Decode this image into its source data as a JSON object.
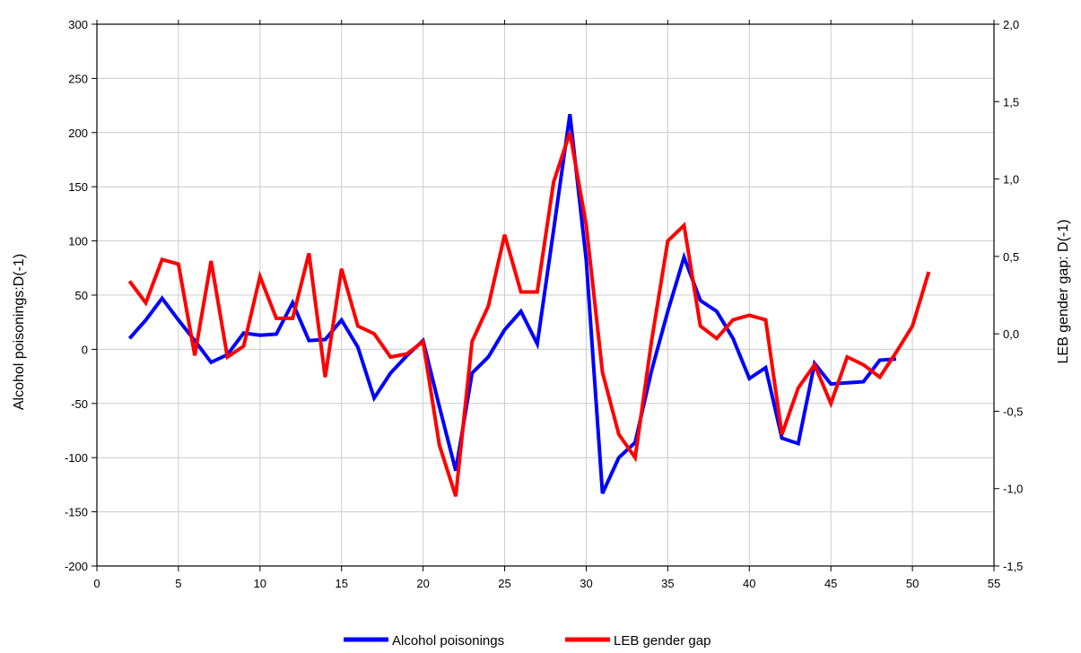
{
  "chart_data": {
    "type": "line",
    "xlim": [
      0,
      55
    ],
    "x_ticks": [
      0,
      5,
      10,
      15,
      20,
      25,
      30,
      35,
      40,
      45,
      50,
      55
    ],
    "x_tick_labels": [
      "0",
      "5",
      "10",
      "15",
      "20",
      "25",
      "30",
      "35",
      "40",
      "45",
      "50",
      "55"
    ],
    "y_left": {
      "label": "Alcohol poisonings:D(-1)",
      "lim": [
        -200,
        300
      ],
      "ticks": [
        -200,
        -150,
        -100,
        -50,
        0,
        50,
        100,
        150,
        200,
        250,
        300
      ],
      "tick_labels": [
        "-200",
        "-150",
        "-100",
        "-50",
        "0",
        "50",
        "100",
        "150",
        "200",
        "250",
        "300"
      ]
    },
    "y_right": {
      "label": "LEB gender gap: D(-1)",
      "lim": [
        -1.5,
        2.0
      ],
      "ticks": [
        -1.5,
        -1.0,
        -0.5,
        0.0,
        0.5,
        1.0,
        1.5,
        2.0
      ],
      "tick_labels": [
        "-1,5",
        "-1,0",
        "-0,5",
        "0,0",
        "0,5",
        "1,0",
        "1,5",
        "2,0"
      ]
    },
    "grid": true,
    "legend_position": "bottom-center",
    "series": [
      {
        "name": "Alcohol poisonings",
        "axis": "left",
        "color": "#0000ff",
        "x": [
          2,
          3,
          4,
          5,
          6,
          7,
          8,
          9,
          10,
          11,
          12,
          13,
          14,
          15,
          16,
          17,
          18,
          19,
          20,
          21,
          22,
          23,
          24,
          25,
          26,
          27,
          28,
          29,
          30,
          31,
          32,
          33,
          34,
          35,
          36,
          37,
          38,
          39,
          40,
          41,
          42,
          43,
          44,
          45,
          46,
          47,
          48,
          49
        ],
        "y": [
          10,
          27,
          47,
          27,
          8,
          -12,
          -5,
          15,
          13,
          14,
          43,
          8,
          9,
          27,
          2,
          -45,
          -22,
          -6,
          8,
          -53,
          -112,
          -22,
          -7,
          18,
          35,
          5,
          110,
          217,
          82,
          -133,
          -100,
          -86,
          -20,
          35,
          85,
          45,
          35,
          10,
          -27,
          -17,
          -82,
          -87,
          -13,
          -32,
          -31,
          -30,
          -10,
          -9
        ]
      },
      {
        "name": "LEB gender gap",
        "axis": "right",
        "color": "#ff0000",
        "x": [
          2,
          3,
          4,
          5,
          6,
          7,
          8,
          9,
          10,
          11,
          12,
          13,
          14,
          15,
          16,
          17,
          18,
          19,
          20,
          21,
          22,
          23,
          24,
          25,
          26,
          27,
          28,
          29,
          30,
          31,
          32,
          33,
          34,
          35,
          36,
          37,
          38,
          39,
          40,
          41,
          42,
          43,
          44,
          45,
          46,
          47,
          48,
          49,
          50,
          51
        ],
        "y": [
          0.34,
          0.2,
          0.48,
          0.45,
          -0.14,
          0.47,
          -0.15,
          -0.08,
          0.37,
          0.1,
          0.1,
          0.52,
          -0.28,
          0.42,
          0.05,
          0.0,
          -0.15,
          -0.13,
          -0.05,
          -0.72,
          -1.05,
          -0.05,
          0.18,
          0.64,
          0.27,
          0.27,
          0.98,
          1.3,
          0.7,
          -0.25,
          -0.65,
          -0.8,
          -0.05,
          0.6,
          0.7,
          0.05,
          -0.03,
          0.09,
          0.12,
          0.09,
          -0.65,
          -0.35,
          -0.2,
          -0.45,
          -0.15,
          -0.2,
          -0.28,
          -0.12,
          0.05,
          0.4
        ]
      }
    ]
  }
}
